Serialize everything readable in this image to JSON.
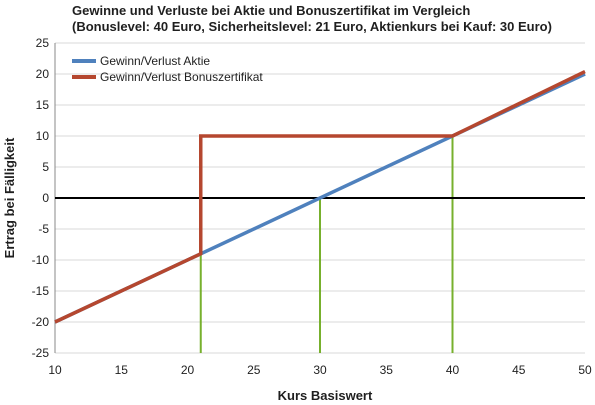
{
  "chart_data": {
    "type": "line",
    "title_lines": [
      "Gewinne und Verluste bei Aktie und Bonuszertifikat im Vergleich",
      "(Bonuslevel: 40 Euro, Sicherheitslevel: 21 Euro, Aktienkurs bei Kauf: 30 Euro)"
    ],
    "xlabel": "Kurs Basiswert",
    "ylabel": "Ertrag bei Fälligkeit",
    "xlim": [
      10,
      50
    ],
    "ylim": [
      -25,
      25
    ],
    "xticks": [
      10,
      15,
      20,
      25,
      30,
      35,
      40,
      45,
      50
    ],
    "yticks": [
      -25,
      -20,
      -15,
      -10,
      -5,
      0,
      5,
      10,
      15,
      20,
      25
    ],
    "grid": true,
    "legend_position": "top-left",
    "series": [
      {
        "name": "Gewinn/Verlust Aktie",
        "color": "#4f81bd",
        "points": [
          [
            10,
            -20
          ],
          [
            50,
            20
          ]
        ]
      },
      {
        "name": "Gewinn/Verlust Bonuszertifikat",
        "color": "#b5472f",
        "points": [
          [
            10,
            -20
          ],
          [
            21,
            -9
          ],
          [
            21,
            10
          ],
          [
            40,
            10
          ],
          [
            50,
            20.4
          ]
        ]
      }
    ],
    "reference_lines": {
      "zero_line_color": "#000000",
      "vertical_markers_color": "#77b02d",
      "vertical_markers": [
        {
          "x": 21,
          "y_top": -9
        },
        {
          "x": 30,
          "y_top": 0
        },
        {
          "x": 40,
          "y_top": 10
        }
      ]
    }
  }
}
